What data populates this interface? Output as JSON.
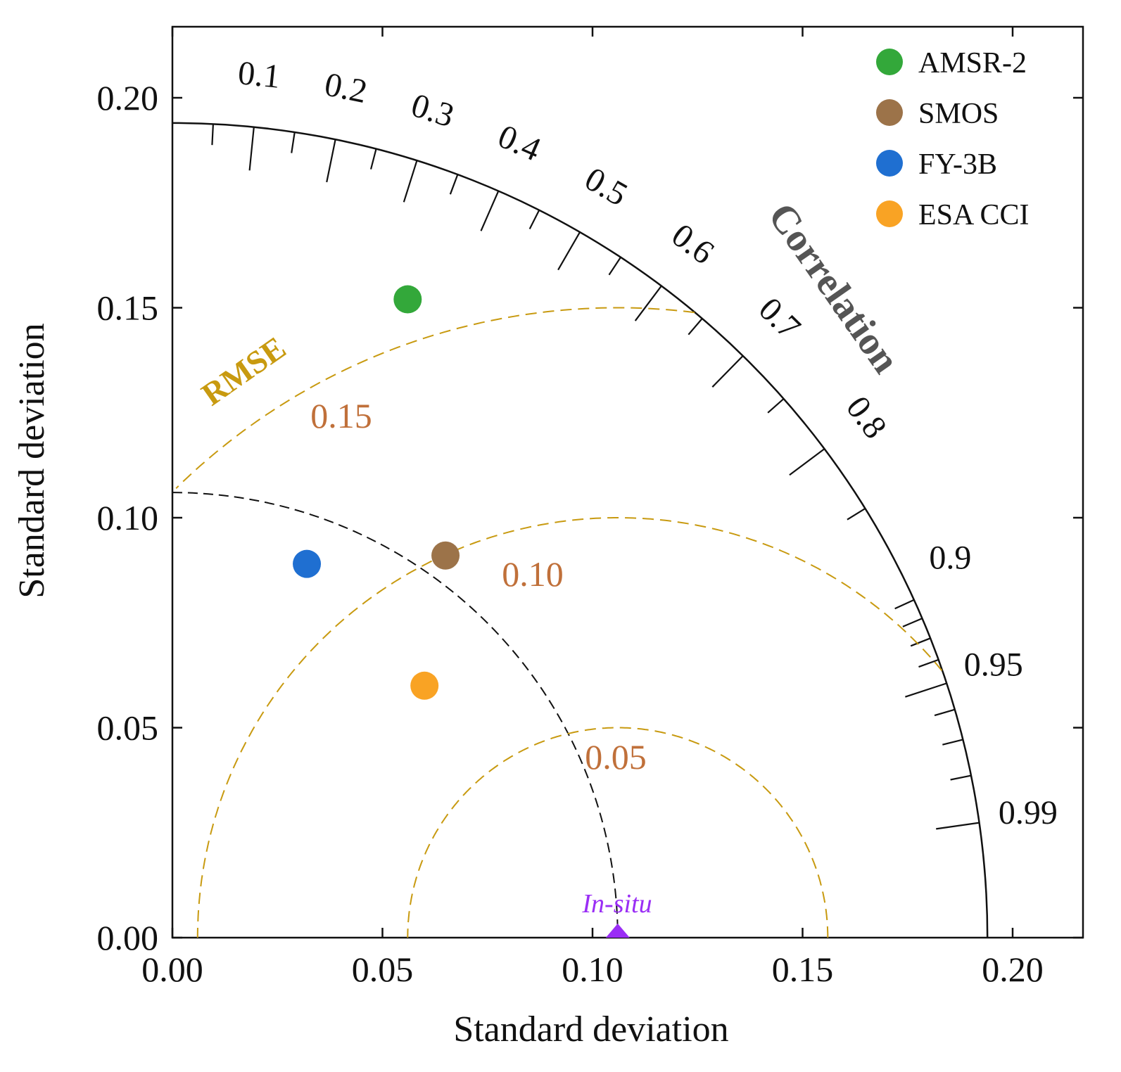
{
  "chart_data": {
    "type": "scatter",
    "subtype": "taylor-diagram",
    "xlabel": "Standard deviation",
    "ylabel": "Standard deviation",
    "xlim": [
      0,
      0.22
    ],
    "ylim": [
      0,
      0.22
    ],
    "x_ticks": [
      "0.00",
      "0.05",
      "0.10",
      "0.15",
      "0.20"
    ],
    "y_ticks": [
      "0.00",
      "0.05",
      "0.10",
      "0.15",
      "0.20"
    ],
    "x_tick_values": [
      0,
      0.05,
      0.1,
      0.15,
      0.2
    ],
    "y_tick_values": [
      0,
      0.05,
      0.1,
      0.15,
      0.2
    ],
    "max_std_arc": 0.194,
    "reference_std": 0.106,
    "reference_label": "In-situ",
    "reference_color": "#9a2ef5",
    "correlation": {
      "title": "Correlation",
      "title_color": "#555555",
      "labels": [
        "0.1",
        "0.2",
        "0.3",
        "0.4",
        "0.5",
        "0.6",
        "0.7",
        "0.8",
        "0.9",
        "0.95",
        "0.99"
      ],
      "values": [
        0.1,
        0.2,
        0.3,
        0.4,
        0.5,
        0.6,
        0.7,
        0.8,
        0.9,
        0.95,
        0.99
      ]
    },
    "rmse": {
      "title": "RMSE",
      "title_color": "#c89a10",
      "line_color": "#c89a10",
      "label_color": "#c0703a",
      "levels": [
        0.05,
        0.1,
        0.15
      ],
      "labels": [
        "0.05",
        "0.10",
        "0.15"
      ]
    },
    "series": [
      {
        "name": "AMSR-2",
        "x": 0.056,
        "y": 0.152,
        "color": "#33a83a"
      },
      {
        "name": "SMOS",
        "x": 0.065,
        "y": 0.091,
        "color": "#9c7349"
      },
      {
        "name": "FY-3B",
        "x": 0.032,
        "y": 0.089,
        "color": "#1f6fd1"
      },
      {
        "name": "ESA CCI",
        "x": 0.06,
        "y": 0.06,
        "color": "#f9a324"
      }
    ],
    "legend_position": "top-right"
  }
}
